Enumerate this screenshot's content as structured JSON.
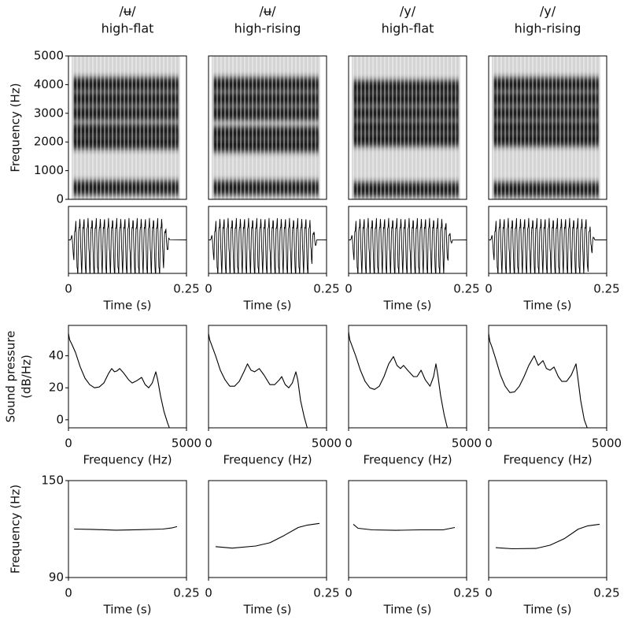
{
  "chart_data": [
    {
      "type": "spectrogram",
      "title": "/ʉ/",
      "subtitle": "high-flat",
      "ylabel": [
        "Frequency (Hz)"
      ],
      "ylim": [
        0,
        5000
      ],
      "yticks": [
        0,
        1000,
        2000,
        3000,
        4000,
        5000
      ],
      "formants": [
        400,
        2000,
        2400,
        3000,
        3500,
        4000
      ]
    },
    {
      "type": "spectrogram",
      "title": "/ʉ/",
      "subtitle": "high-rising",
      "ylim": [
        0,
        5000
      ],
      "formants": [
        400,
        1900,
        2300,
        3000,
        3500,
        4000
      ]
    },
    {
      "type": "spectrogram",
      "title": "/y/",
      "subtitle": "high-flat",
      "ylim": [
        0,
        5000
      ],
      "formants": [
        350,
        2100,
        2500,
        3000,
        3500,
        3900
      ]
    },
    {
      "type": "spectrogram",
      "title": "/y/",
      "subtitle": "high-rising",
      "ylim": [
        0,
        5000
      ],
      "formants": [
        350,
        2100,
        2500,
        3000,
        3500,
        4000
      ]
    },
    {
      "type": "waveform",
      "xlabel": "Time (s)",
      "xlim": [
        0,
        0.25
      ],
      "xticks": [
        0,
        0.25
      ],
      "span": [
        0.004,
        0.215
      ]
    },
    {
      "type": "waveform",
      "xlabel": "Time (s)",
      "xlim": [
        0,
        0.25
      ],
      "xticks": [
        0,
        0.25
      ],
      "span": [
        0.004,
        0.23
      ]
    },
    {
      "type": "waveform",
      "xlabel": "Time (s)",
      "xlim": [
        0,
        0.25
      ],
      "xticks": [
        0,
        0.25
      ],
      "span": [
        0.004,
        0.22
      ]
    },
    {
      "type": "waveform",
      "xlabel": "Time (s)",
      "xlim": [
        0,
        0.25
      ],
      "xticks": [
        0,
        0.25
      ],
      "span": [
        0.004,
        0.225
      ]
    },
    {
      "type": "line",
      "ylabel": [
        "Sound pressure",
        "(dB/Hz)"
      ],
      "xlabel": "Frequency (Hz)",
      "xlim": [
        0,
        5000
      ],
      "xticks": [
        0,
        5000
      ],
      "ylim": [
        -5,
        59
      ],
      "yticks": [
        0,
        20,
        40
      ],
      "x": [
        0,
        50,
        150,
        300,
        500,
        700,
        900,
        1100,
        1300,
        1500,
        1700,
        1830,
        1950,
        2050,
        2170,
        2350,
        2550,
        2700,
        2900,
        3100,
        3250,
        3400,
        3550,
        3700,
        3780,
        3900,
        4050,
        4200,
        4300
      ],
      "y": [
        54,
        50,
        47,
        42,
        33,
        26,
        22,
        20,
        20.5,
        23,
        29,
        32,
        30,
        30.5,
        32,
        29,
        25,
        23,
        24.5,
        26.5,
        22,
        20,
        23,
        30,
        25,
        15,
        5,
        -2,
        -6
      ]
    },
    {
      "type": "line",
      "xlabel": "Frequency (Hz)",
      "xlim": [
        0,
        5000
      ],
      "xticks": [
        0,
        5000
      ],
      "ylim": [
        -5,
        59
      ],
      "x": [
        0,
        50,
        150,
        300,
        500,
        700,
        900,
        1100,
        1300,
        1500,
        1650,
        1800,
        1950,
        2150,
        2350,
        2600,
        2800,
        3000,
        3100,
        3250,
        3400,
        3550,
        3700,
        3780,
        3900,
        4050,
        4200
      ],
      "y": [
        54,
        50,
        46,
        40,
        31,
        25,
        21,
        21,
        24,
        30,
        35,
        31,
        30,
        32,
        28,
        22,
        22,
        25,
        27,
        22,
        20,
        23,
        30,
        25,
        12,
        2,
        -6
      ]
    },
    {
      "type": "line",
      "xlabel": "Frequency (Hz)",
      "xlim": [
        0,
        5000
      ],
      "xticks": [
        0,
        5000
      ],
      "ylim": [
        -5,
        59
      ],
      "x": [
        0,
        50,
        150,
        300,
        500,
        700,
        900,
        1100,
        1300,
        1500,
        1700,
        1900,
        2050,
        2200,
        2330,
        2500,
        2750,
        2900,
        3070,
        3250,
        3450,
        3600,
        3700,
        3780,
        3900,
        4050,
        4200
      ],
      "y": [
        55,
        50,
        46,
        40,
        31,
        24,
        20,
        19,
        21,
        27,
        35,
        39.5,
        34,
        32,
        34,
        31,
        27,
        27,
        31,
        25,
        21,
        27,
        35,
        28,
        15,
        3,
        -6
      ]
    },
    {
      "type": "line",
      "xlabel": "Frequency (Hz)",
      "xlim": [
        0,
        5000
      ],
      "xticks": [
        0,
        5000
      ],
      "ylim": [
        -5,
        59
      ],
      "x": [
        0,
        50,
        150,
        300,
        500,
        700,
        900,
        1100,
        1300,
        1500,
        1700,
        1930,
        2100,
        2300,
        2450,
        2600,
        2770,
        2950,
        3100,
        3300,
        3500,
        3700,
        3780,
        3900,
        4050,
        4200
      ],
      "y": [
        54,
        49,
        45,
        38,
        28,
        21,
        17,
        17.5,
        21,
        27,
        34,
        40,
        34,
        37,
        32,
        31,
        33,
        27,
        24,
        24,
        28,
        35,
        26,
        12,
        0,
        -6
      ]
    },
    {
      "type": "line",
      "ylabel": [
        "Frequency (Hz)"
      ],
      "xlabel": "Time (s)",
      "xlim": [
        0,
        0.25
      ],
      "xticks": [
        0,
        0.25
      ],
      "ylim": [
        90,
        150
      ],
      "yticks": [
        90,
        150
      ],
      "x": [
        0.012,
        0.05,
        0.1,
        0.15,
        0.2,
        0.22,
        0.23
      ],
      "y": [
        120,
        119.8,
        119.3,
        119.6,
        120,
        120.8,
        121.5
      ]
    },
    {
      "type": "line",
      "xlabel": "Time (s)",
      "xlim": [
        0,
        0.25
      ],
      "xticks": [
        0,
        0.25
      ],
      "ylim": [
        90,
        150
      ],
      "x": [
        0.015,
        0.05,
        0.1,
        0.13,
        0.16,
        0.19,
        0.21,
        0.235
      ],
      "y": [
        109.1,
        108.2,
        109.5,
        111.5,
        116,
        121,
        122.5,
        123.5
      ]
    },
    {
      "type": "line",
      "xlabel": "Time (s)",
      "xlim": [
        0,
        0.25
      ],
      "xticks": [
        0,
        0.25
      ],
      "ylim": [
        90,
        150
      ],
      "x": [
        0.01,
        0.02,
        0.05,
        0.1,
        0.15,
        0.2,
        0.225
      ],
      "y": [
        123,
        120.5,
        119.5,
        119.2,
        119.5,
        119.5,
        121
      ]
    },
    {
      "type": "line",
      "xlabel": "Time (s)",
      "xlim": [
        0,
        0.25
      ],
      "xticks": [
        0,
        0.25
      ],
      "ylim": [
        90,
        150
      ],
      "x": [
        0.015,
        0.05,
        0.1,
        0.13,
        0.16,
        0.19,
        0.21,
        0.235
      ],
      "y": [
        108.5,
        107.8,
        108,
        110,
        114,
        120,
        122,
        123
      ]
    }
  ]
}
